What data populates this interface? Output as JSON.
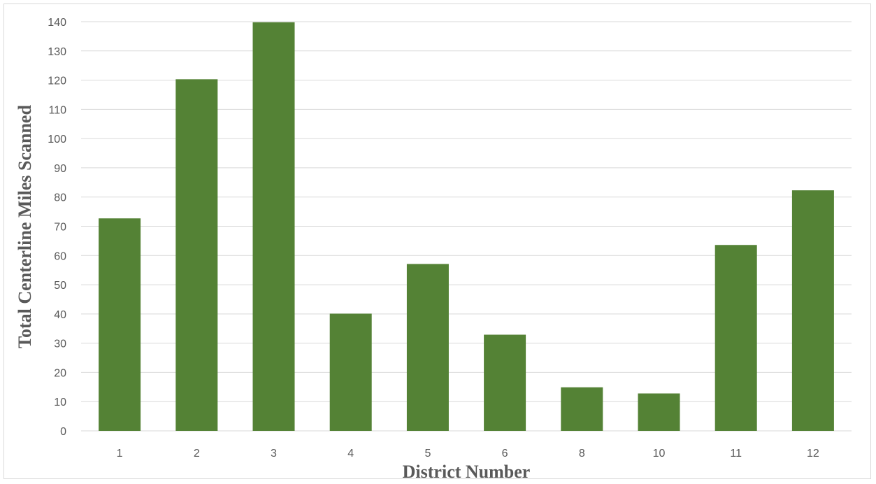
{
  "chart_data": {
    "type": "bar",
    "title": "",
    "xlabel": "District Number",
    "ylabel": "Total Centerline Miles Scanned",
    "categories": [
      "1",
      "2",
      "3",
      "4",
      "5",
      "6",
      "8",
      "10",
      "11",
      "12"
    ],
    "values": [
      72.7,
      120.3,
      139.8,
      40.1,
      57.1,
      32.9,
      14.9,
      12.8,
      63.6,
      82.3
    ],
    "ylim": [
      0,
      140
    ],
    "yticks": [
      "0",
      "10",
      "20",
      "30",
      "40",
      "50",
      "60",
      "70",
      "80",
      "90",
      "100",
      "110",
      "120",
      "130",
      "140"
    ],
    "grid": true,
    "legend": "none",
    "colors": {
      "bar": "#548235",
      "grid": "#d9d9d9",
      "text": "#595959"
    }
  }
}
